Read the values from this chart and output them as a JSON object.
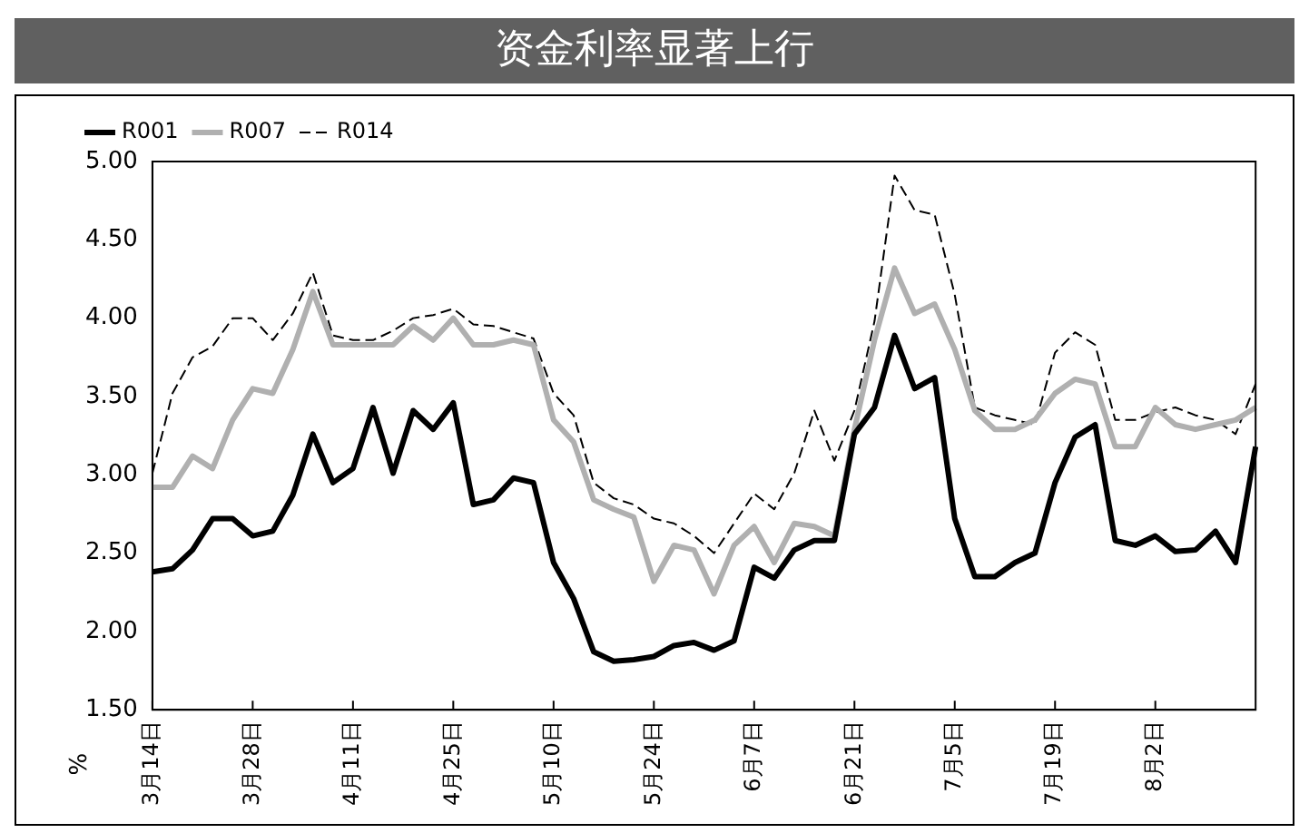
{
  "chart_data": {
    "type": "line",
    "title": "资金利率显著上行",
    "ylabel": "%",
    "categories": [
      "3月14日",
      null,
      null,
      null,
      null,
      "3月28日",
      null,
      null,
      null,
      null,
      "4月11日",
      null,
      null,
      null,
      null,
      "4月25日",
      null,
      null,
      null,
      null,
      "5月10日",
      null,
      null,
      null,
      null,
      "5月24日",
      null,
      null,
      null,
      null,
      "6月7日",
      null,
      null,
      null,
      null,
      "6月21日",
      null,
      null,
      null,
      null,
      "7月5日",
      null,
      null,
      null,
      null,
      "7月19日",
      null,
      null,
      null,
      null,
      "8月2日",
      null,
      null,
      null,
      null,
      null
    ],
    "series": [
      {
        "name": "R001",
        "color": "#000000",
        "line_style": "solid",
        "values": [
          2.38,
          2.4,
          2.52,
          2.72,
          2.72,
          2.61,
          2.64,
          2.87,
          3.26,
          2.95,
          3.04,
          3.43,
          3.01,
          3.41,
          3.29,
          3.46,
          2.81,
          2.84,
          2.98,
          2.95,
          2.44,
          2.21,
          1.87,
          1.81,
          1.82,
          1.84,
          1.91,
          1.93,
          1.88,
          1.94,
          2.41,
          2.34,
          2.52,
          2.58,
          2.58,
          3.26,
          3.43,
          3.89,
          3.55,
          3.62,
          2.72,
          2.35,
          2.35,
          2.44,
          2.5,
          2.95,
          3.24,
          3.32,
          2.58,
          2.55,
          2.61,
          2.51,
          2.52,
          2.64,
          2.44,
          3.18
        ]
      },
      {
        "name": "R007",
        "color": "#b0b0b0",
        "line_style": "solid",
        "values": [
          2.92,
          2.92,
          3.12,
          3.04,
          3.35,
          3.55,
          3.52,
          3.8,
          4.17,
          3.83,
          3.83,
          3.83,
          3.83,
          3.95,
          3.86,
          4.0,
          3.83,
          3.83,
          3.86,
          3.83,
          3.35,
          3.21,
          2.84,
          2.78,
          2.73,
          2.32,
          2.55,
          2.52,
          2.24,
          2.55,
          2.67,
          2.44,
          2.69,
          2.67,
          2.61,
          3.29,
          3.86,
          4.32,
          4.03,
          4.09,
          3.8,
          3.41,
          3.29,
          3.29,
          3.35,
          3.52,
          3.61,
          3.58,
          3.18,
          3.18,
          3.43,
          3.32,
          3.29,
          3.32,
          3.35,
          3.43
        ]
      },
      {
        "name": "R014",
        "color": "#000000",
        "line_style": "dashed",
        "values": [
          3.01,
          3.52,
          3.75,
          3.82,
          4.0,
          4.0,
          3.86,
          4.03,
          4.29,
          3.89,
          3.86,
          3.86,
          3.92,
          4.0,
          4.02,
          4.06,
          3.96,
          3.95,
          3.91,
          3.87,
          3.52,
          3.38,
          2.95,
          2.85,
          2.81,
          2.72,
          2.69,
          2.61,
          2.5,
          2.69,
          2.88,
          2.78,
          3.01,
          3.41,
          3.09,
          3.41,
          3.98,
          4.91,
          4.69,
          4.66,
          4.15,
          3.43,
          3.38,
          3.35,
          3.32,
          3.78,
          3.91,
          3.83,
          3.35,
          3.35,
          3.4,
          3.43,
          3.38,
          3.35,
          3.26,
          3.58
        ]
      }
    ],
    "ylim": [
      1.5,
      5.0
    ],
    "yticks": [
      {
        "value": 1.5,
        "label": "1.50"
      },
      {
        "value": 2.0,
        "label": "2.00"
      },
      {
        "value": 2.5,
        "label": "2.50"
      },
      {
        "value": 3.0,
        "label": "3.00"
      },
      {
        "value": 3.5,
        "label": "3.50"
      },
      {
        "value": 4.0,
        "label": "4.00"
      },
      {
        "value": 4.5,
        "label": "4.50"
      },
      {
        "value": 5.0,
        "label": "5.00"
      }
    ],
    "grid": false,
    "legend": "top left",
    "marker": "none"
  }
}
